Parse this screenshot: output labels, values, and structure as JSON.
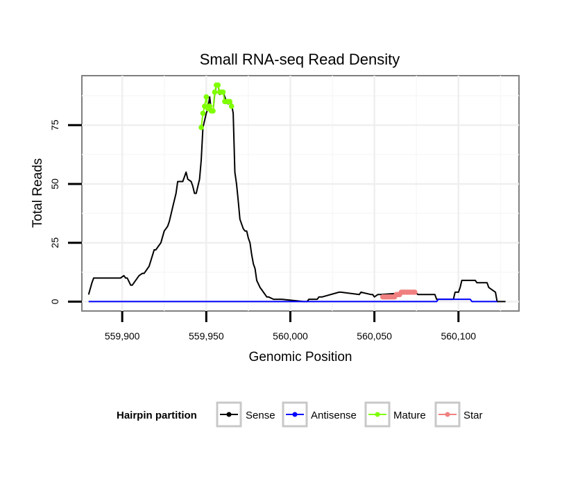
{
  "chart_data": {
    "type": "line",
    "title": "Small RNA-seq Read Density",
    "xlabel": "Genomic Position",
    "ylabel": "Total Reads",
    "xlim": [
      559876,
      560136
    ],
    "ylim": [
      -4,
      96
    ],
    "x_ticks": [
      559900,
      559950,
      560000,
      560050,
      560100
    ],
    "x_tick_labels": [
      "559,900",
      "559,950",
      "560,000",
      "560,050",
      "560,100"
    ],
    "y_ticks": [
      0,
      25,
      50,
      75
    ],
    "y_tick_labels": [
      "0",
      "25",
      "50",
      "75"
    ],
    "grid": true,
    "legend": {
      "title": "Hairpin partition",
      "position": "bottom",
      "entries": [
        {
          "name": "Sense",
          "color": "#000000"
        },
        {
          "name": "Antisense",
          "color": "#0000ff"
        },
        {
          "name": "Mature",
          "color": "#7fff00"
        },
        {
          "name": "Star",
          "color": "#f08080"
        }
      ]
    },
    "series": [
      {
        "name": "Sense",
        "color": "#000000",
        "style": "line",
        "x": [
          559880,
          559882,
          559883,
          559889,
          559895,
          559897,
          559898,
          559899,
          559901,
          559902,
          559903,
          559905,
          559906,
          559907,
          559910,
          559912,
          559913,
          559915,
          559916,
          559919,
          559920,
          559921,
          559923,
          559925,
          559926,
          559927,
          559928,
          559930,
          559932,
          559933,
          559934,
          559935,
          559936,
          559937,
          559938,
          559939,
          559941,
          559942,
          559943,
          559944,
          559945,
          559946,
          559947,
          559948,
          559950,
          559951,
          559952,
          559953,
          559954,
          559955,
          559956,
          559957,
          559958,
          559960,
          559962,
          559963,
          559964,
          559965,
          559966,
          559967,
          559968,
          559969,
          559970,
          559972,
          559973,
          559974,
          559975,
          559976,
          559977,
          559978,
          559979,
          559980,
          559982,
          559983,
          559984,
          559985,
          559986,
          559987,
          559990,
          559995,
          560008,
          560010,
          560011,
          560015,
          560016,
          560017,
          560018,
          560019,
          560029,
          560030,
          560041,
          560042,
          560048,
          560049,
          560050,
          560052,
          560054,
          560074,
          560076,
          560086,
          560087,
          560097,
          560098,
          560100,
          560101,
          560102,
          560103,
          560110,
          560111,
          560117,
          560118,
          560122,
          560123,
          560128
        ],
        "y": [
          3,
          8,
          10,
          10,
          10,
          10,
          10,
          10,
          11,
          10,
          10,
          7,
          7,
          8,
          11,
          12,
          12,
          14,
          15,
          22,
          22,
          23,
          25,
          30,
          31,
          32,
          34,
          40,
          46,
          51,
          51,
          51,
          51,
          53,
          55,
          52,
          51,
          49,
          46,
          46,
          49,
          52,
          60,
          74,
          80,
          82,
          87,
          81,
          81,
          88,
          92,
          92,
          88,
          89,
          85,
          84,
          85,
          84,
          80,
          55,
          50,
          43,
          35,
          31,
          30,
          30,
          27,
          25,
          20,
          16,
          14,
          9,
          6,
          5,
          4,
          3,
          2,
          2,
          1,
          1,
          0,
          0,
          1,
          1,
          1,
          2,
          2,
          2,
          4,
          4,
          3,
          4,
          3,
          3,
          2,
          3,
          3,
          4,
          3,
          3,
          1,
          1,
          4,
          4,
          6,
          9,
          9,
          9,
          8,
          8,
          6,
          4,
          0,
          0
        ]
      },
      {
        "name": "Antisense",
        "color": "#0000ff",
        "style": "line",
        "x": [
          559880,
          560087,
          560088,
          560106,
          560107,
          560108,
          560123
        ],
        "y": [
          0,
          0,
          1,
          1,
          1,
          0,
          0
        ]
      },
      {
        "name": "Mature",
        "color": "#7fff00",
        "style": "points",
        "x": [
          559947,
          559948,
          559949,
          559950,
          559951,
          559952,
          559953,
          559954,
          559955,
          559956,
          559957,
          559958,
          559959,
          559960,
          559961,
          559962,
          559963,
          559964,
          559965
        ],
        "y": [
          74,
          80,
          83,
          87,
          82,
          83,
          81,
          81,
          89,
          92,
          92,
          89,
          89,
          89,
          85,
          85,
          85,
          85,
          83
        ]
      },
      {
        "name": "Star",
        "color": "#f08080",
        "style": "points",
        "x": [
          560055,
          560056,
          560057,
          560058,
          560059,
          560060,
          560061,
          560062,
          560063,
          560064,
          560065,
          560066,
          560067,
          560068,
          560069,
          560070,
          560071,
          560072,
          560073,
          560074
        ],
        "y": [
          2,
          2,
          2,
          2,
          2,
          2,
          2,
          2,
          3,
          3,
          3,
          4,
          4,
          4,
          4,
          4,
          4,
          4,
          4,
          4
        ]
      }
    ]
  }
}
